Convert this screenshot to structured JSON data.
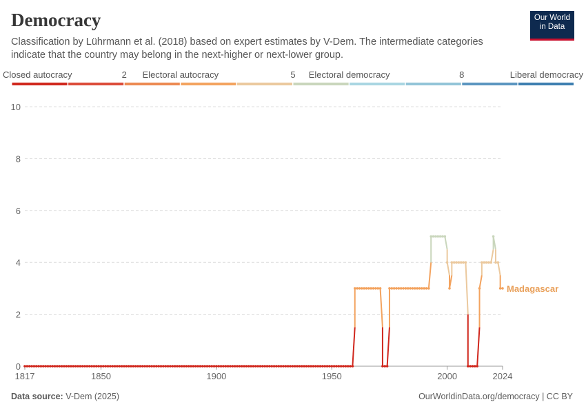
{
  "header": {
    "title": "Democracy",
    "subtitle": "Classification by Lührmann et al. (2018) based on expert estimates by V-Dem. The intermediate categories indicate that the country may belong in the next-higher or next-lower group.",
    "logo_line1": "Our World",
    "logo_line2": "in Data"
  },
  "footer": {
    "source_label": "Data source:",
    "source_value": "V-Dem (2025)",
    "url": "OurWorldinData.org/democracy | CC BY"
  },
  "colors": {
    "legend": [
      "#d0271d",
      "#dc4c3a",
      "#ec8a52",
      "#f3a35f",
      "#ebc99e",
      "#c9d6bc",
      "#a9d6e2",
      "#93c4d8",
      "#5b96c0",
      "#3e7fb0"
    ],
    "series": "#e9a05a"
  },
  "legend": {
    "labels": [
      {
        "text": "Closed autocracy",
        "pos": 0
      },
      {
        "text": "2",
        "pos": 2
      },
      {
        "text": "Electoral autocracy",
        "pos": 3
      },
      {
        "text": "5",
        "pos": 5
      },
      {
        "text": "Electoral democracy",
        "pos": 6
      },
      {
        "text": "8",
        "pos": 8
      },
      {
        "text": "Liberal democracy",
        "pos": 10
      }
    ]
  },
  "chart_data": {
    "type": "line",
    "title": "Democracy",
    "xlim": [
      1817,
      2024
    ],
    "ylim": [
      0,
      10
    ],
    "x_ticks": [
      1817,
      1850,
      1900,
      1950,
      2000,
      2024
    ],
    "y_ticks": [
      0,
      2,
      4,
      6,
      8,
      10
    ],
    "grid": true,
    "series": [
      {
        "name": "Madagascar",
        "segments": [
          {
            "from": 1817,
            "to": 1959,
            "value": 0
          },
          {
            "from": 1960,
            "to": 1971,
            "value": 3
          },
          {
            "from": 1972,
            "to": 1974,
            "value": 0
          },
          {
            "from": 1975,
            "to": 1992,
            "value": 3
          },
          {
            "from": 1993,
            "to": 1999,
            "value": 5
          },
          {
            "from": 2000,
            "to": 2000,
            "value": 4
          },
          {
            "from": 2001,
            "to": 2001,
            "value": 3
          },
          {
            "from": 2002,
            "to": 2008,
            "value": 4
          },
          {
            "from": 2009,
            "to": 2013,
            "value": 0
          },
          {
            "from": 2014,
            "to": 2014,
            "value": 3
          },
          {
            "from": 2015,
            "to": 2019,
            "value": 4
          },
          {
            "from": 2020,
            "to": 2020,
            "value": 5
          },
          {
            "from": 2021,
            "to": 2022,
            "value": 4
          },
          {
            "from": 2023,
            "to": 2024,
            "value": 3
          }
        ]
      }
    ]
  }
}
